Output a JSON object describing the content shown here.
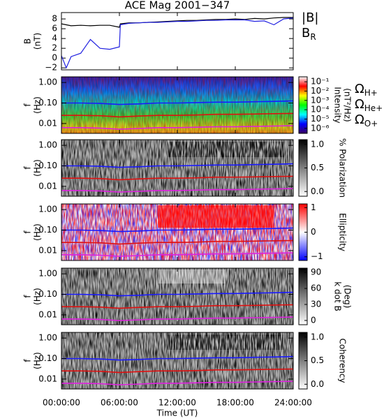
{
  "chart_data": [
    {
      "type": "line",
      "title": "ACE Mag 2001−347",
      "ylabel": [
        "B",
        "(nT)"
      ],
      "x": [
        0,
        0.5,
        1,
        2,
        3,
        4,
        5,
        6,
        6.1,
        7,
        8,
        9,
        10,
        11,
        12,
        13,
        14,
        15,
        16,
        17,
        18,
        19,
        20,
        21,
        22,
        23,
        24
      ],
      "xlim": [
        0,
        24
      ],
      "ylim": [
        -2.4,
        9.3
      ],
      "yticks": [
        {
          "value": -2,
          "label": "−2"
        },
        0,
        2,
        4,
        6,
        8
      ],
      "series": [
        {
          "name": "|B|",
          "color": "#000000",
          "values": [
            7,
            6.8,
            6.6,
            6.7,
            6.6,
            6.7,
            6.7,
            6.3,
            7,
            7.2,
            7.2,
            7.3,
            7.4,
            7.5,
            7.6,
            7.7,
            7.7,
            7.8,
            7.9,
            7.9,
            8,
            7.9,
            8.1,
            8,
            8.2,
            8.3,
            8.3
          ]
        },
        {
          "name": "BR",
          "color": "#2020e0",
          "values": [
            0.5,
            -2,
            0.3,
            1,
            3.8,
            2,
            1.8,
            2.3,
            6.8,
            7.1,
            7.2,
            7.3,
            7.3,
            7.4,
            7.5,
            7.5,
            7.6,
            7.7,
            7.7,
            7.8,
            7.8,
            7.8,
            7.5,
            7.6,
            6.8,
            8,
            8.2
          ]
        }
      ]
    },
    {
      "type": "spectrogram",
      "ylabel": [
        "f",
        "(Hz)"
      ],
      "xlabel": "Time (UT)",
      "log_y": true,
      "x": [
        0,
        2,
        4,
        6,
        8,
        10,
        12,
        14,
        16,
        18,
        20,
        22,
        24
      ],
      "xlim": [
        0,
        24
      ],
      "xticks": [
        {
          "value": 0,
          "label": "00:00:00"
        },
        {
          "value": 6,
          "label": "06:00:00"
        },
        {
          "value": 12,
          "label": "12:00:00"
        },
        {
          "value": 18,
          "label": "18:00:00"
        },
        {
          "value": 24,
          "label": "24:00:00"
        }
      ],
      "ylim": [
        0.0033,
        1.89
      ],
      "yticks": [
        0.01,
        {
          "value": 0.1,
          "label": "0.10"
        },
        {
          "value": 1,
          "label": "1.00"
        }
      ],
      "series": [
        {
          "name": "ΩH+",
          "color": "#1a1aff",
          "values": [
            0.1,
            0.1,
            0.095,
            0.085,
            0.09,
            0.1,
            0.1,
            0.105,
            0.11,
            0.11,
            0.115,
            0.12,
            0.125
          ]
        },
        {
          "name": "ΩHe+",
          "color": "#e01010",
          "values": [
            0.025,
            0.025,
            0.024,
            0.021,
            0.023,
            0.025,
            0.025,
            0.026,
            0.028,
            0.028,
            0.029,
            0.03,
            0.031
          ]
        },
        {
          "name": "ΩO+",
          "color": "#e020e0",
          "values": [
            0.0063,
            0.0063,
            0.006,
            0.0053,
            0.0057,
            0.0063,
            0.0063,
            0.0066,
            0.0069,
            0.0069,
            0.0072,
            0.0075,
            0.0078
          ]
        }
      ],
      "panels": [
        {
          "colorbar_label": [
            "Intensity",
            "(nT²/Hz)"
          ],
          "colorbar_log": true,
          "colorbar_lim": [
            2.9e-07,
            0.34
          ],
          "colorbar_colors": [
            "#3a0060",
            "#0000ff",
            "#00ffff",
            "#00ff00",
            "#ffff00",
            "#ff0000",
            "#ffffff"
          ],
          "colorbar_ticks": [
            {
              "value": 0.1,
              "label": "10⁻¹"
            },
            {
              "value": 0.01,
              "label": "10⁻²"
            },
            {
              "value": 0.001,
              "label": "10⁻³"
            },
            {
              "value": 0.0001,
              "label": "10⁻⁴"
            },
            {
              "value": 1e-05,
              "label": "10⁻⁵"
            },
            {
              "value": 1e-06,
              "label": "10⁻⁶"
            }
          ]
        },
        {
          "colorbar_label": [
            "% Polarization"
          ],
          "colorbar_lim": [
            -0.1,
            1.1
          ],
          "colorbar_colors": [
            "#ffffff",
            "#000000"
          ],
          "colorbar_ticks": [
            {
              "value": 0,
              "label": "0.0"
            },
            0.5,
            {
              "value": 1,
              "label": "1.0"
            }
          ]
        },
        {
          "colorbar_label": [
            "Ellipticity"
          ],
          "colorbar_lim": [
            -1.15,
            1.15
          ],
          "colorbar_colors": [
            "#0000ff",
            "#ffffff",
            "#ff0000"
          ],
          "colorbar_ticks": [
            {
              "value": -1,
              "label": "−1"
            },
            0,
            1
          ]
        },
        {
          "colorbar_label": [
            "k dot B",
            "(Deg)"
          ],
          "colorbar_lim": [
            -8,
            98
          ],
          "colorbar_colors": [
            "#ffffff",
            "#000000"
          ],
          "colorbar_ticks": [
            0,
            30,
            60,
            90
          ]
        },
        {
          "colorbar_label": [
            "Coherency"
          ],
          "colorbar_lim": [
            -0.1,
            1.1
          ],
          "colorbar_colors": [
            "#ffffff",
            "#000000"
          ],
          "colorbar_ticks": [
            {
              "value": 0,
              "label": "0.0"
            },
            0.5,
            {
              "value": 1,
              "label": "1.0"
            }
          ]
        }
      ]
    }
  ]
}
